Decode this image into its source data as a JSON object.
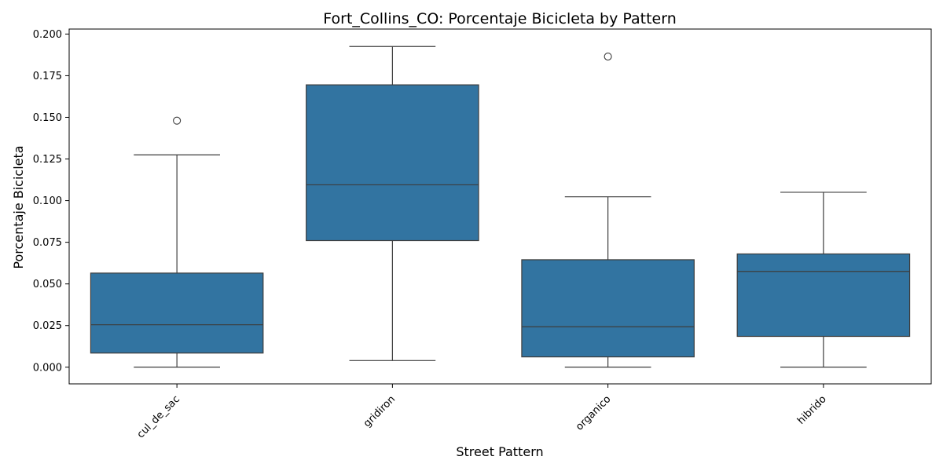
{
  "chart_data": {
    "type": "box",
    "title": "Fort_Collins_CO: Porcentaje Bicicleta by Pattern",
    "xlabel": "Street Pattern",
    "ylabel": "Porcentaje Bicicleta",
    "ylim": [
      -0.01,
      0.203
    ],
    "yticks": [
      0.0,
      0.025,
      0.05,
      0.075,
      0.1,
      0.125,
      0.15,
      0.175,
      0.2
    ],
    "ytick_labels": [
      "0.000",
      "0.025",
      "0.050",
      "0.075",
      "0.100",
      "0.125",
      "0.150",
      "0.175",
      "0.200"
    ],
    "categories": [
      "cul_de_sac",
      "gridiron",
      "organico",
      "hibrido"
    ],
    "box_color": "#3274a1",
    "line_color": "#3d3d3d",
    "grid": false,
    "boxes": [
      {
        "category": "cul_de_sac",
        "whisker_low": 0.0,
        "q1": 0.0085,
        "median": 0.0255,
        "q3": 0.0565,
        "whisker_high": 0.1275,
        "outliers": [
          0.148
        ]
      },
      {
        "category": "gridiron",
        "whisker_low": 0.004,
        "q1": 0.076,
        "median": 0.1095,
        "q3": 0.1695,
        "whisker_high": 0.1925,
        "outliers": []
      },
      {
        "category": "organico",
        "whisker_low": 0.0,
        "q1": 0.0062,
        "median": 0.0243,
        "q3": 0.0645,
        "whisker_high": 0.1023,
        "outliers": [
          0.1865
        ]
      },
      {
        "category": "hibrido",
        "whisker_low": 0.0,
        "q1": 0.0185,
        "median": 0.0575,
        "q3": 0.068,
        "whisker_high": 0.105,
        "outliers": []
      }
    ]
  }
}
